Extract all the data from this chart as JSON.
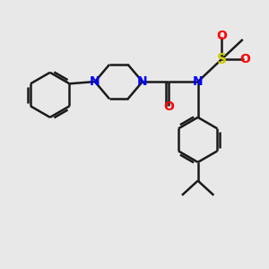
{
  "bg_color": "#e8e8e8",
  "bond_color": "#1a1a1a",
  "N_color": "#0000ff",
  "O_color": "#ff0000",
  "S_color": "#cccc00",
  "line_width": 1.8,
  "figsize": [
    3.0,
    3.0
  ],
  "dpi": 100,
  "xlim": [
    0,
    10
  ],
  "ylim": [
    0,
    10
  ]
}
